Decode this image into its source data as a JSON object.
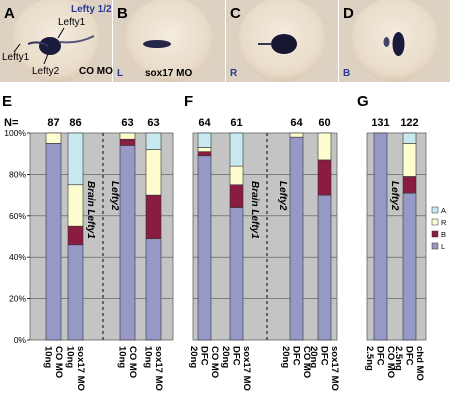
{
  "photo_panels": [
    {
      "letter": "A",
      "labels": [
        "Lefty 1/2",
        "Lefty1",
        "Lefty1",
        "Lefty2",
        "CO MO"
      ]
    },
    {
      "letter": "B",
      "labels": [
        "L",
        "sox17 MO"
      ]
    },
    {
      "letter": "C",
      "labels": [
        "R"
      ]
    },
    {
      "letter": "D",
      "labels": [
        "B"
      ]
    }
  ],
  "colors": {
    "A": "#c8e8f0",
    "R": "#fdfdd0",
    "B": "#8a1c42",
    "L": "#9698c6",
    "plot_bg": "#c4c4c4",
    "label_blue": "#2a3a9a"
  },
  "legend": [
    "A",
    "R",
    "B",
    "L"
  ],
  "n_label": "N=",
  "chart_data": [
    {
      "panel": "E",
      "type": "bar",
      "stacked": true,
      "y_ticks": [
        "0%",
        "20%",
        "40%",
        "60%",
        "80%",
        "100%"
      ],
      "ylim": [
        0,
        100
      ],
      "groups": [
        {
          "annotation": "Brain Lefty1",
          "bars": [
            {
              "n": "87",
              "label": [
                "10ng",
                "CO MO"
              ],
              "L": 95,
              "B": 0,
              "R": 5,
              "A": 0
            },
            {
              "n": "86",
              "label": [
                "10ng",
                "sox17 MO"
              ],
              "L": 46,
              "B": 9,
              "R": 20,
              "A": 25
            }
          ]
        },
        {
          "annotation": "Lefty2",
          "bars": [
            {
              "n": "63",
              "label": [
                "10ng",
                "CO MO"
              ],
              "L": 94,
              "B": 3,
              "R": 3,
              "A": 0
            },
            {
              "n": "63",
              "label": [
                "10ng",
                "sox17 MO"
              ],
              "L": 49,
              "B": 21,
              "R": 22,
              "A": 8
            }
          ]
        }
      ]
    },
    {
      "panel": "F",
      "type": "bar",
      "stacked": true,
      "groups": [
        {
          "annotation": "Brain Lefty1",
          "bars": [
            {
              "n": "64",
              "label": [
                "20ng",
                "DFC",
                "CO MO"
              ],
              "L": 89,
              "B": 2,
              "R": 2,
              "A": 7
            },
            {
              "n": "61",
              "label": [
                "20ng",
                "DFC",
                "sox17 MO"
              ],
              "L": 64,
              "B": 11,
              "R": 9,
              "A": 16
            }
          ]
        },
        {
          "annotation": "Lefty2",
          "bars": [
            {
              "n": "64",
              "label": [
                "20ng",
                "DFC",
                "CO MO"
              ],
              "L": 98,
              "B": 0,
              "R": 2,
              "A": 0
            },
            {
              "n": "60",
              "label": [
                "20ng",
                "DFC",
                "sox17 MO"
              ],
              "L": 70,
              "B": 17,
              "R": 13,
              "A": 0
            }
          ]
        }
      ]
    },
    {
      "panel": "G",
      "type": "bar",
      "stacked": true,
      "groups": [
        {
          "annotation": "Lefty2",
          "bars": [
            {
              "n": "131",
              "label": [
                "2.5ng",
                "DFC",
                "CO MO"
              ],
              "L": 100,
              "B": 0,
              "R": 0,
              "A": 0
            },
            {
              "n": "122",
              "label": [
                "2.5ng",
                "DFC",
                "chd MO"
              ],
              "L": 71,
              "B": 8,
              "R": 16,
              "A": 5
            }
          ]
        }
      ]
    }
  ]
}
